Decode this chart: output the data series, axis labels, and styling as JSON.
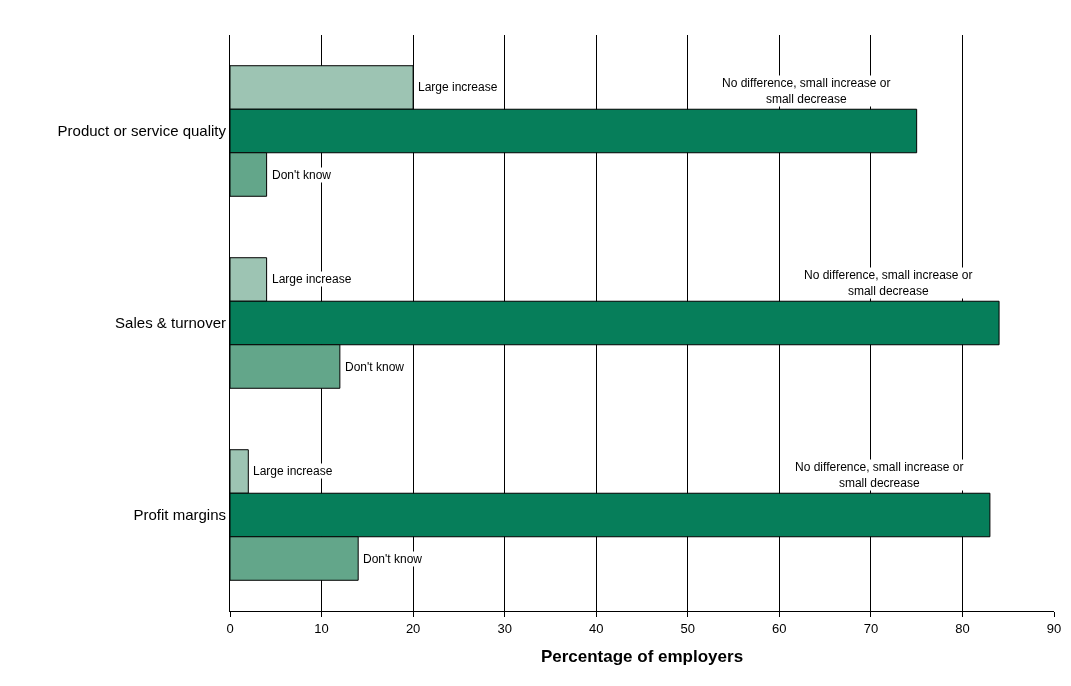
{
  "chart_data": {
    "type": "bar",
    "orientation": "horizontal",
    "xlabel": "Percentage of employers",
    "categories": [
      "Product or service quality",
      "Sales & turnover",
      "Profit margins"
    ],
    "series": [
      {
        "name": "Large increase",
        "color": "#9dc4b3",
        "values": [
          20,
          4,
          2
        ]
      },
      {
        "name": "No difference, small increase or small decrease",
        "color": "#067e5a",
        "values": [
          75,
          84,
          83
        ]
      },
      {
        "name": "Don't know",
        "color": "#63a68a",
        "values": [
          4,
          12,
          14
        ]
      }
    ],
    "xlim": [
      0,
      90
    ],
    "xticks": [
      0,
      10,
      20,
      30,
      40,
      50,
      60,
      70,
      80,
      90
    ],
    "grid": "x",
    "legend": false
  }
}
